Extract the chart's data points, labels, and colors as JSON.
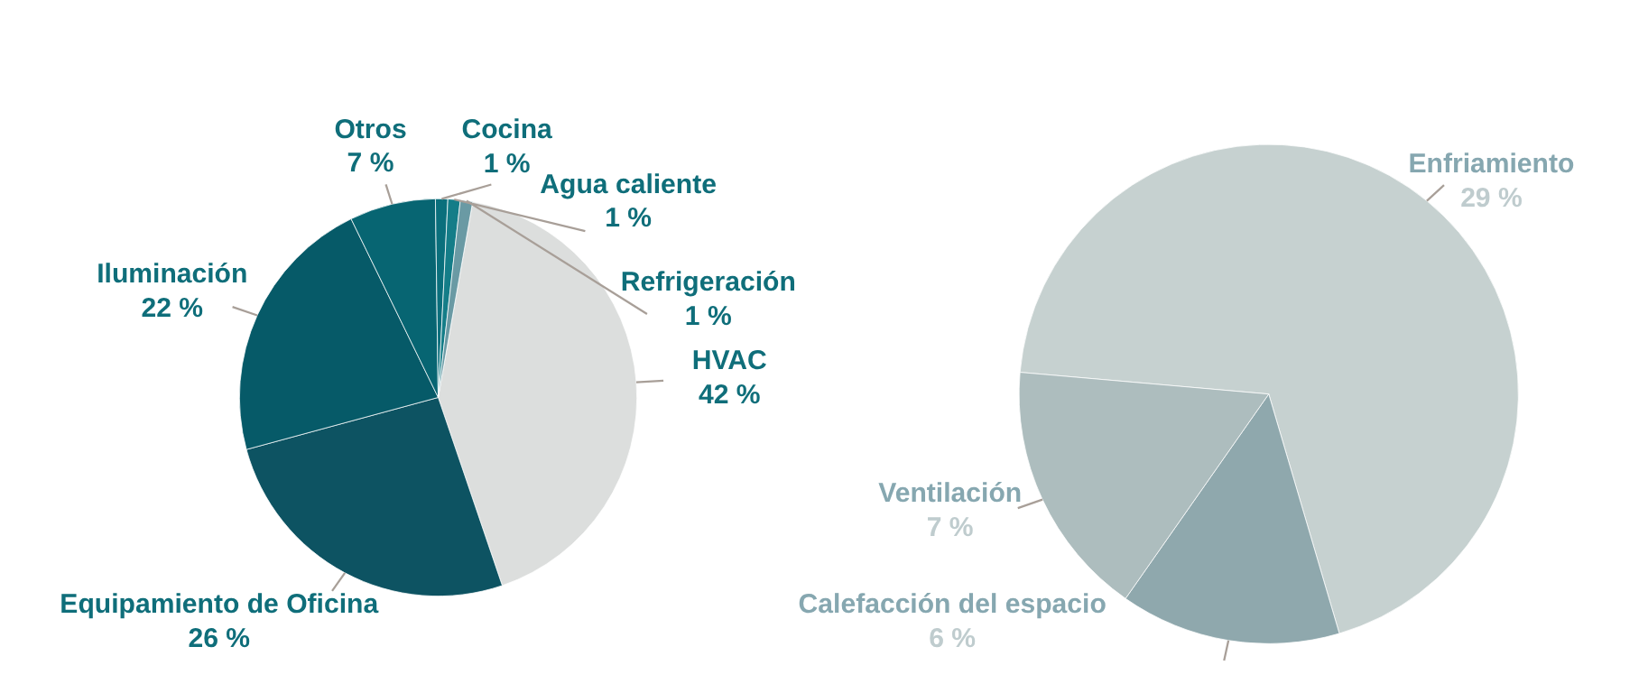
{
  "chart_data": [
    {
      "type": "pie",
      "categories": [
        "HVAC",
        "Equipamiento de Oficina",
        "Iluminación",
        "Otros",
        "Cocina",
        "Agua caliente",
        "Refrigeración"
      ],
      "values": [
        42,
        26,
        22,
        7,
        1,
        1,
        1
      ],
      "value_labels": [
        "42 %",
        "26 %",
        "22 %",
        "7 %",
        "1 %",
        "1 %",
        "1 %"
      ],
      "colors": [
        "#dcdedd",
        "#0d5362",
        "#065a68",
        "#076572",
        "#0a6f7c",
        "#147d88",
        "#6a9aa4"
      ]
    },
    {
      "type": "pie",
      "categories": [
        "Enfriamiento",
        "Calefacción del espacio",
        "Ventilación"
      ],
      "values": [
        29,
        6,
        7
      ],
      "value_labels": [
        "29 %",
        "6 %",
        "7 %"
      ],
      "colors": [
        "#c6d1d0",
        "#8fa8ad",
        "#adbdbe"
      ]
    }
  ]
}
